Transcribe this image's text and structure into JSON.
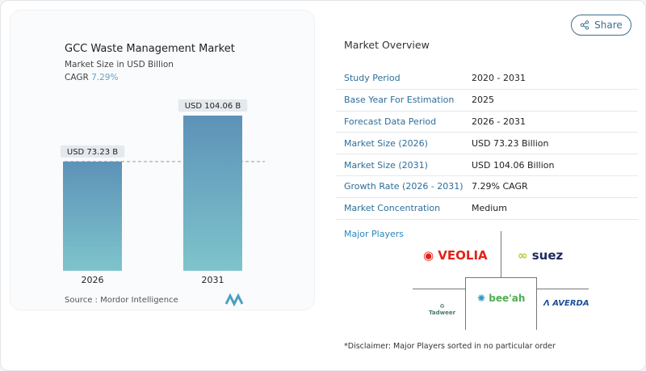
{
  "header": {
    "share_label": "Share",
    "share_icon": "share-icon"
  },
  "chart_card": {
    "title": "GCC Waste Management Market",
    "subtitle": "Market Size in USD Billion",
    "cagr_label": "CAGR",
    "cagr_value": "7.29%",
    "source": "Source :  Mordor Intelligence"
  },
  "chart_data": {
    "type": "bar",
    "title": "GCC Waste Management Market",
    "subtitle": "Market Size in USD Billion",
    "categories": [
      "2026",
      "2031"
    ],
    "values": [
      73.23,
      104.06
    ],
    "data_labels": [
      "USD 73.23 B",
      "USD 104.06 B"
    ],
    "ylim": [
      0,
      110
    ],
    "grid": false,
    "colors": {
      "top": "#5d92b8",
      "bottom": "#7ec4cc"
    }
  },
  "overview": {
    "title": "Market Overview",
    "rows": [
      {
        "label": "Study Period",
        "value": "2020 - 2031"
      },
      {
        "label": "Base Year For Estimation",
        "value": "2025"
      },
      {
        "label": "Forecast Data Period",
        "value": "2026 - 2031"
      },
      {
        "label": "Market Size (2026)",
        "value": "USD 73.23 Billion"
      },
      {
        "label": "Market Size (2031)",
        "value": "USD 104.06 Billion"
      },
      {
        "label": "Growth Rate (2026 - 2031)",
        "value": "7.29% CAGR"
      },
      {
        "label": "Market Concentration",
        "value": "Medium"
      }
    ]
  },
  "players": {
    "title": "Major Players",
    "logos": [
      "VEOLIA",
      "SUEZ",
      "Tadweer",
      "bee'ah",
      "AVERDA"
    ],
    "disclaimer": "*Disclaimer: Major Players sorted in no particular order"
  }
}
